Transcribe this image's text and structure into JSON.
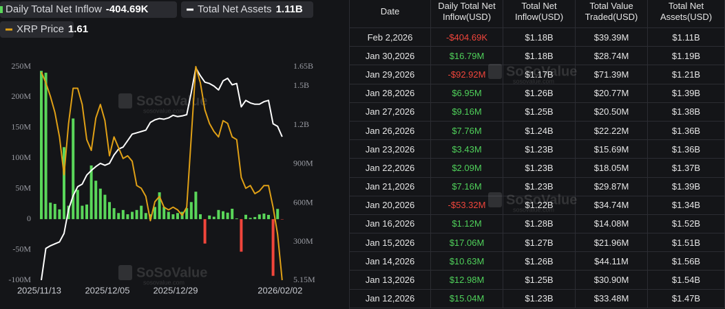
{
  "chart_data": {
    "type": "combo",
    "categories": [
      "2025/11/13",
      null,
      null,
      null,
      null,
      null,
      null,
      null,
      null,
      null,
      null,
      null,
      null,
      null,
      null,
      "2025/12/05",
      null,
      null,
      null,
      null,
      null,
      null,
      null,
      null,
      null,
      null,
      null,
      null,
      null,
      null,
      "2025/12/29",
      null,
      null,
      null,
      null,
      null,
      null,
      null,
      null,
      null,
      null,
      null,
      null,
      null,
      null,
      null,
      null,
      null,
      null,
      null,
      null,
      null,
      null,
      "2026/02/02"
    ],
    "ylim": [
      -100000000,
      250000000
    ],
    "yticks": [
      {
        "value": 250000000,
        "label": "250M"
      },
      {
        "value": 200000000,
        "label": "200M"
      },
      {
        "value": 150000000,
        "label": "150M"
      },
      {
        "value": 100000000,
        "label": "100M"
      },
      {
        "value": 50000000,
        "label": "50M"
      },
      0,
      {
        "value": -50000000,
        "label": "-50M"
      },
      {
        "value": -100000000,
        "label": "-100M"
      }
    ],
    "y2lim": [
      5150000,
      1650000000
    ],
    "y2ticks": [
      {
        "value": 1650000000,
        "label": "1.65B"
      },
      {
        "value": 1500000000,
        "label": "1.5B"
      },
      {
        "value": 1200000000,
        "label": "1.2B"
      },
      {
        "value": 900000000,
        "label": "900M"
      },
      {
        "value": 600000000,
        "label": "600M"
      },
      {
        "value": 300000000,
        "label": "300M"
      },
      {
        "value": 5150000,
        "label": "5.15M"
      }
    ],
    "y3lim": [
      1.61,
      2.4
    ],
    "grid": false,
    "watermark": "SoSoValue",
    "watermark_url": "sosovalue.com",
    "series": [
      {
        "name": "Daily Total Net Inflow",
        "type": "bar",
        "latest_label": "-404.69K",
        "color": "#5ad65a",
        "negative_color": "#f0453b",
        "values": [
          243000000,
          240000000,
          27000000,
          25000000,
          16000000,
          118000000,
          22000000,
          165000000,
          48000000,
          22000000,
          24000000,
          88000000,
          63000000,
          50000000,
          40000000,
          28000000,
          18000000,
          10000000,
          15000000,
          8000000,
          12000000,
          15000000,
          22000000,
          10000000,
          8000000,
          20000000,
          44000000,
          20000000,
          12000000,
          8000000,
          10000000,
          12000000,
          18000000,
          28000000,
          45000000,
          8000000,
          -40000000,
          6000000,
          4000000,
          15040000,
          12980000,
          10630000,
          17060000,
          1120000,
          -53320000,
          7160000,
          2090000,
          3430000,
          7760000,
          9160000,
          6950000,
          -92920000,
          16790000,
          -404690
        ]
      },
      {
        "name": "Total Net Assets",
        "type": "line",
        "axis": "y2",
        "latest_label": "1.11B",
        "color": "#ffffff",
        "values": [
          5150000,
          250000000,
          270000000,
          285000000,
          300000000,
          365000000,
          550000000,
          655000000,
          725000000,
          745000000,
          815000000,
          850000000,
          880000000,
          905000000,
          890000000,
          905000000,
          970000000,
          1015000000,
          1030000000,
          1080000000,
          1130000000,
          1140000000,
          1150000000,
          1160000000,
          1220000000,
          1240000000,
          1250000000,
          1245000000,
          1255000000,
          1275000000,
          1265000000,
          1270000000,
          1280000000,
          1450000000,
          1640000000,
          1580000000,
          1530000000,
          1520000000,
          1500000000,
          1470000000,
          1540000000,
          1560000000,
          1510000000,
          1520000000,
          1340000000,
          1390000000,
          1370000000,
          1360000000,
          1360000000,
          1380000000,
          1390000000,
          1210000000,
          1190000000,
          1110000000
        ]
      },
      {
        "name": "XRP Price",
        "type": "line",
        "axis": "y3",
        "latest_label": "1.61",
        "color": "#e0a016",
        "values": [
          2.38,
          2.34,
          2.29,
          2.23,
          2.14,
          2.0,
          2.19,
          2.32,
          2.32,
          2.26,
          2.13,
          2.09,
          2.21,
          2.26,
          2.2,
          2.07,
          2.14,
          2.1,
          2.06,
          2.07,
          2.05,
          1.96,
          1.95,
          1.92,
          1.83,
          1.9,
          1.92,
          1.88,
          1.87,
          1.88,
          1.87,
          1.85,
          1.88,
          2.14,
          2.4,
          2.34,
          2.24,
          2.19,
          2.16,
          2.14,
          2.2,
          2.19,
          2.14,
          2.13,
          1.99,
          1.95,
          1.96,
          1.93,
          1.94,
          1.96,
          1.96,
          1.88,
          1.78,
          1.61
        ]
      }
    ]
  },
  "table": {
    "headers": [
      "Date",
      "Daily Total Net Inflow(USD)",
      "Total Net Inflow(USD)",
      "Total Value Traded(USD)",
      "Total Net Assets(USD)"
    ],
    "rows": [
      [
        "Feb 2,2026",
        "-$404.69K",
        "$1.18B",
        "$39.39M",
        "$1.11B"
      ],
      [
        "Jan 30,2026",
        "$16.79M",
        "$1.18B",
        "$28.74M",
        "$1.19B"
      ],
      [
        "Jan 29,2026",
        "-$92.92M",
        "$1.17B",
        "$71.39M",
        "$1.21B"
      ],
      [
        "Jan 28,2026",
        "$6.95M",
        "$1.26B",
        "$20.77M",
        "$1.39B"
      ],
      [
        "Jan 27,2026",
        "$9.16M",
        "$1.25B",
        "$20.50M",
        "$1.38B"
      ],
      [
        "Jan 26,2026",
        "$7.76M",
        "$1.24B",
        "$22.22M",
        "$1.36B"
      ],
      [
        "Jan 23,2026",
        "$3.43M",
        "$1.23B",
        "$15.69M",
        "$1.36B"
      ],
      [
        "Jan 22,2026",
        "$2.09M",
        "$1.23B",
        "$18.05M",
        "$1.37B"
      ],
      [
        "Jan 21,2026",
        "$7.16M",
        "$1.23B",
        "$29.87M",
        "$1.39B"
      ],
      [
        "Jan 20,2026",
        "-$53.32M",
        "$1.22B",
        "$34.74M",
        "$1.34B"
      ],
      [
        "Jan 16,2026",
        "$1.12M",
        "$1.28B",
        "$14.08M",
        "$1.52B"
      ],
      [
        "Jan 15,2026",
        "$17.06M",
        "$1.27B",
        "$21.96M",
        "$1.51B"
      ],
      [
        "Jan 14,2026",
        "$10.63M",
        "$1.26B",
        "$44.11M",
        "$1.56B"
      ],
      [
        "Jan 13,2026",
        "$12.98M",
        "$1.25B",
        "$30.90M",
        "$1.54B"
      ],
      [
        "Jan 12,2026",
        "$15.04M",
        "$1.23B",
        "$33.48M",
        "$1.47B"
      ]
    ]
  }
}
